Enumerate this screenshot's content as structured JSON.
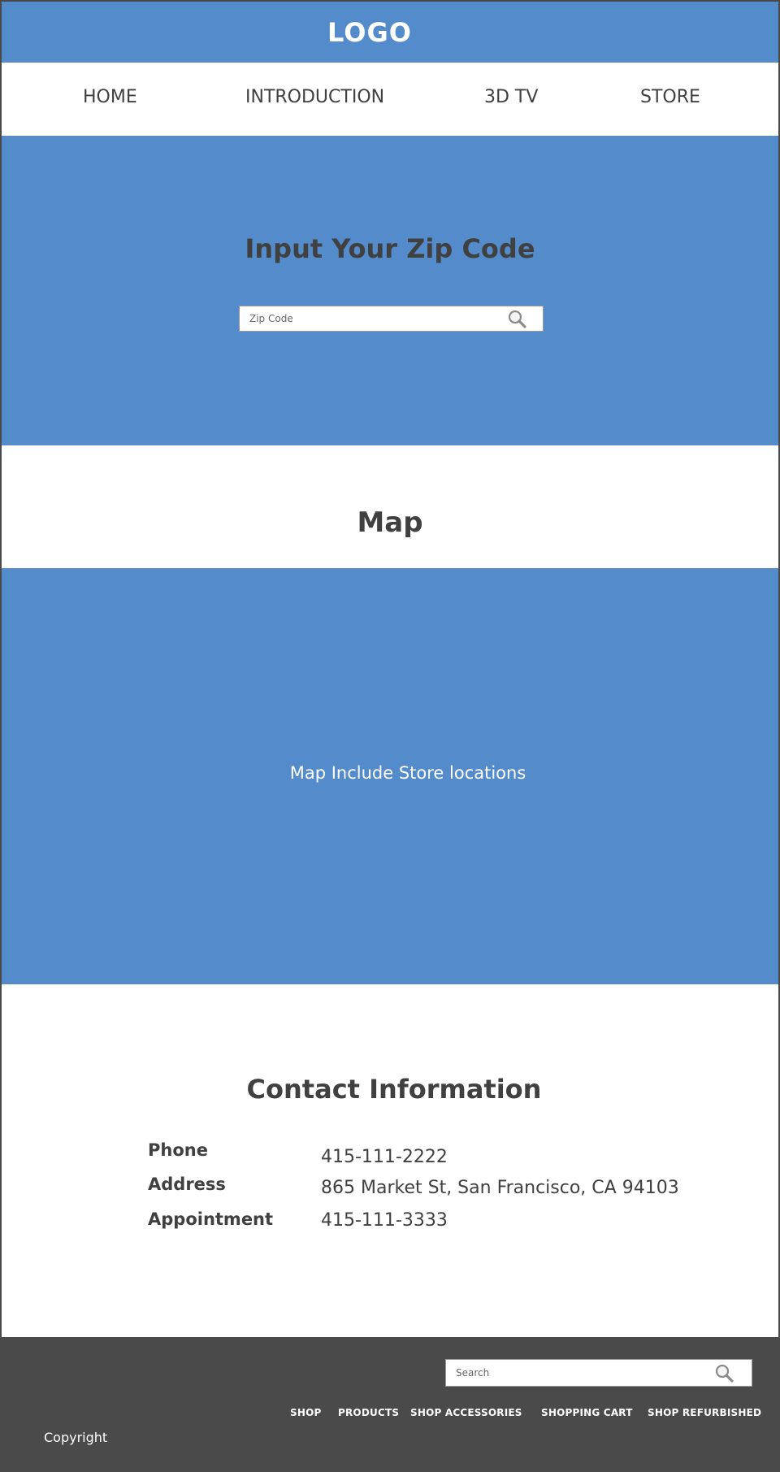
{
  "header": {
    "logo": "LOGO"
  },
  "nav": {
    "items": [
      "HOME",
      "INTRODUCTION",
      "3D TV",
      "STORE"
    ]
  },
  "zip_section": {
    "title": "Input Your Zip Code",
    "input_placeholder": "Zip Code",
    "icon": "search-icon"
  },
  "map_section": {
    "title": "Map",
    "caption": "Map Include Store locations"
  },
  "contact": {
    "title": "Contact Information",
    "rows": [
      {
        "label": "Phone",
        "value": "415-111-2222"
      },
      {
        "label": "Address",
        "value": "865 Market St, San Francisco, CA 94103"
      },
      {
        "label": "Appointment",
        "value": "415-111-3333"
      }
    ]
  },
  "footer": {
    "search_placeholder": "Search",
    "links": [
      "SHOP",
      "PRODUCTS",
      "SHOP ACCESSORIES",
      "SHOPPING CART",
      "SHOP REFURBISHED"
    ],
    "copyright": "Copyright"
  },
  "colors": {
    "primary_blue": "#548bcb",
    "dark_text": "#404040",
    "footer_bg": "#4a4a4a",
    "white": "#ffffff"
  }
}
